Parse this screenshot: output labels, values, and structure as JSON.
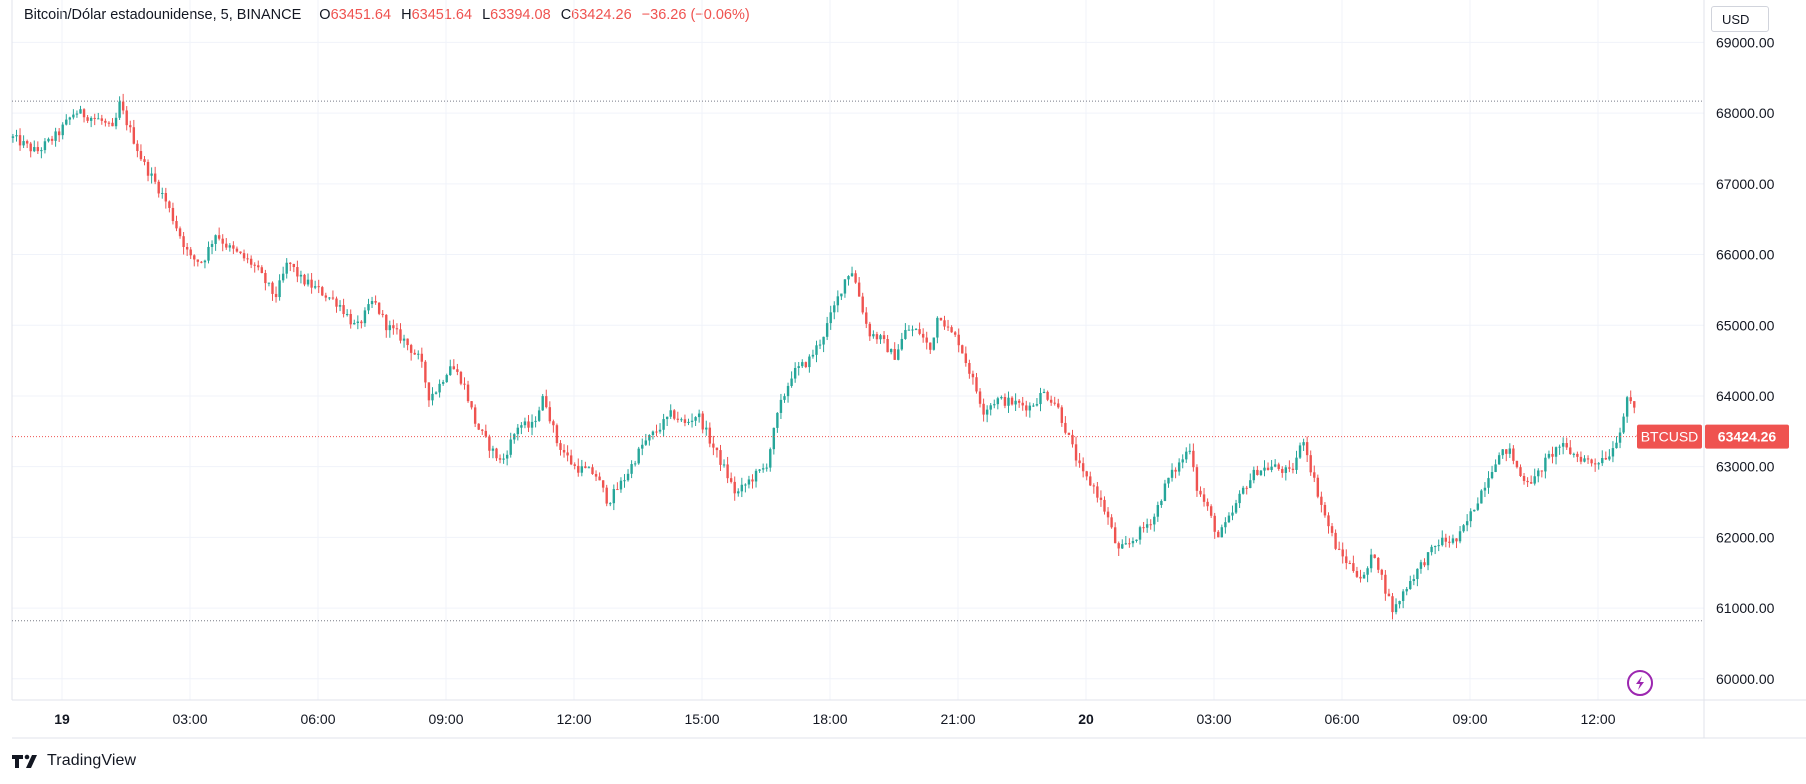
{
  "legend": {
    "title": "Bitcoin/Dólar estadounidense, 5, BINANCE",
    "open_label": "O",
    "open": "63451.64",
    "high_label": "H",
    "high": "63451.64",
    "low_label": "L",
    "low": "63394.08",
    "close_label": "C",
    "close": "63424.26",
    "change": "−36.26 (−0.06%)"
  },
  "currency": "USD",
  "brand": "TradingView",
  "colors": {
    "up": "#26a69a",
    "down": "#ef5350",
    "grid": "#f0f3fa",
    "axis_border": "#e0e3eb",
    "price_line": "#ef5350",
    "lightning": "#9c27b0"
  },
  "chart_data": {
    "type": "candlestick",
    "symbol": "BTCUSD",
    "interval": "5",
    "ylim": [
      59700,
      69600
    ],
    "y_ticks": [
      "69000.00",
      "68000.00",
      "67000.00",
      "66000.00",
      "65000.00",
      "64000.00",
      "63000.00",
      "62000.00",
      "61000.00",
      "60000.00"
    ],
    "x_ticks": [
      {
        "label": "19",
        "bold": true,
        "hour": 0
      },
      {
        "label": "03:00",
        "bold": false,
        "hour": 3
      },
      {
        "label": "06:00",
        "bold": false,
        "hour": 6
      },
      {
        "label": "09:00",
        "bold": false,
        "hour": 9
      },
      {
        "label": "12:00",
        "bold": false,
        "hour": 12
      },
      {
        "label": "15:00",
        "bold": false,
        "hour": 15
      },
      {
        "label": "18:00",
        "bold": false,
        "hour": 18
      },
      {
        "label": "21:00",
        "bold": false,
        "hour": 21
      },
      {
        "label": "20",
        "bold": true,
        "hour": 24
      },
      {
        "label": "03:00",
        "bold": false,
        "hour": 27
      },
      {
        "label": "06:00",
        "bold": false,
        "hour": 30
      },
      {
        "label": "09:00",
        "bold": false,
        "hour": 33
      },
      {
        "label": "12:00",
        "bold": false,
        "hour": 36
      }
    ],
    "x_start_hour": -1.15,
    "x_end_hour": 37.3,
    "high_line": 68170,
    "low_line": 60820,
    "last_price": 63424.26,
    "last_label": "BTCUSD",
    "last_value": "63424.26",
    "anchors": [
      [
        -1.15,
        67650
      ],
      [
        -0.6,
        67450
      ],
      [
        -0.1,
        67700
      ],
      [
        0.3,
        68020
      ],
      [
        0.9,
        67900
      ],
      [
        1.2,
        67750
      ],
      [
        1.35,
        68120
      ],
      [
        1.6,
        67750
      ],
      [
        1.9,
        67300
      ],
      [
        2.4,
        66800
      ],
      [
        2.75,
        66300
      ],
      [
        3.0,
        65950
      ],
      [
        3.3,
        65900
      ],
      [
        3.6,
        66300
      ],
      [
        3.9,
        66100
      ],
      [
        4.5,
        65850
      ],
      [
        5.0,
        65400
      ],
      [
        5.3,
        65900
      ],
      [
        5.6,
        65650
      ],
      [
        6.0,
        65500
      ],
      [
        6.5,
        65300
      ],
      [
        6.9,
        64950
      ],
      [
        7.3,
        65350
      ],
      [
        7.6,
        65000
      ],
      [
        8.0,
        64800
      ],
      [
        8.4,
        64500
      ],
      [
        8.6,
        64000
      ],
      [
        8.8,
        64100
      ],
      [
        9.1,
        64450
      ],
      [
        9.4,
        64200
      ],
      [
        9.7,
        63600
      ],
      [
        10.0,
        63300
      ],
      [
        10.3,
        63050
      ],
      [
        10.7,
        63600
      ],
      [
        11.0,
        63550
      ],
      [
        11.3,
        64000
      ],
      [
        11.6,
        63350
      ],
      [
        12.0,
        63000
      ],
      [
        12.5,
        62900
      ],
      [
        12.8,
        62500
      ],
      [
        13.2,
        62850
      ],
      [
        13.6,
        63300
      ],
      [
        14.0,
        63550
      ],
      [
        14.3,
        63750
      ],
      [
        14.6,
        63600
      ],
      [
        14.9,
        63750
      ],
      [
        15.2,
        63350
      ],
      [
        15.5,
        63000
      ],
      [
        15.8,
        62600
      ],
      [
        16.1,
        62800
      ],
      [
        16.5,
        63000
      ],
      [
        16.8,
        63800
      ],
      [
        17.1,
        64300
      ],
      [
        17.5,
        64500
      ],
      [
        17.8,
        64800
      ],
      [
        18.1,
        65250
      ],
      [
        18.35,
        65650
      ],
      [
        18.5,
        65800
      ],
      [
        18.65,
        65500
      ],
      [
        18.9,
        64900
      ],
      [
        19.2,
        64800
      ],
      [
        19.5,
        64550
      ],
      [
        19.8,
        64950
      ],
      [
        20.1,
        64900
      ],
      [
        20.35,
        64650
      ],
      [
        20.55,
        65200
      ],
      [
        20.8,
        64900
      ],
      [
        21.0,
        64800
      ],
      [
        21.3,
        64300
      ],
      [
        21.6,
        63800
      ],
      [
        21.9,
        63950
      ],
      [
        22.3,
        63900
      ],
      [
        22.7,
        63850
      ],
      [
        23.0,
        64050
      ],
      [
        23.3,
        63900
      ],
      [
        23.6,
        63400
      ],
      [
        23.9,
        62900
      ],
      [
        24.2,
        62700
      ],
      [
        24.5,
        62300
      ],
      [
        24.75,
        61800
      ],
      [
        25.0,
        61900
      ],
      [
        25.3,
        62100
      ],
      [
        25.6,
        62300
      ],
      [
        25.9,
        62800
      ],
      [
        26.2,
        63050
      ],
      [
        26.45,
        63300
      ],
      [
        26.6,
        62700
      ],
      [
        26.85,
        62400
      ],
      [
        27.1,
        62000
      ],
      [
        27.4,
        62300
      ],
      [
        27.7,
        62700
      ],
      [
        28.0,
        62950
      ],
      [
        28.4,
        63000
      ],
      [
        28.8,
        62900
      ],
      [
        29.1,
        63400
      ],
      [
        29.3,
        62900
      ],
      [
        29.6,
        62300
      ],
      [
        29.9,
        61800
      ],
      [
        30.2,
        61600
      ],
      [
        30.5,
        61400
      ],
      [
        30.75,
        61800
      ],
      [
        31.0,
        61300
      ],
      [
        31.2,
        60950
      ],
      [
        31.5,
        61300
      ],
      [
        31.9,
        61650
      ],
      [
        32.3,
        61950
      ],
      [
        32.7,
        61950
      ],
      [
        33.0,
        62300
      ],
      [
        33.3,
        62700
      ],
      [
        33.6,
        63100
      ],
      [
        33.9,
        63250
      ],
      [
        34.2,
        62850
      ],
      [
        34.5,
        62800
      ],
      [
        34.8,
        63100
      ],
      [
        35.1,
        63300
      ],
      [
        35.5,
        63150
      ],
      [
        35.9,
        63050
      ],
      [
        36.3,
        63200
      ],
      [
        36.5,
        63500
      ],
      [
        36.7,
        63950
      ],
      [
        36.9,
        63800
      ],
      [
        37.0,
        63424
      ]
    ]
  }
}
